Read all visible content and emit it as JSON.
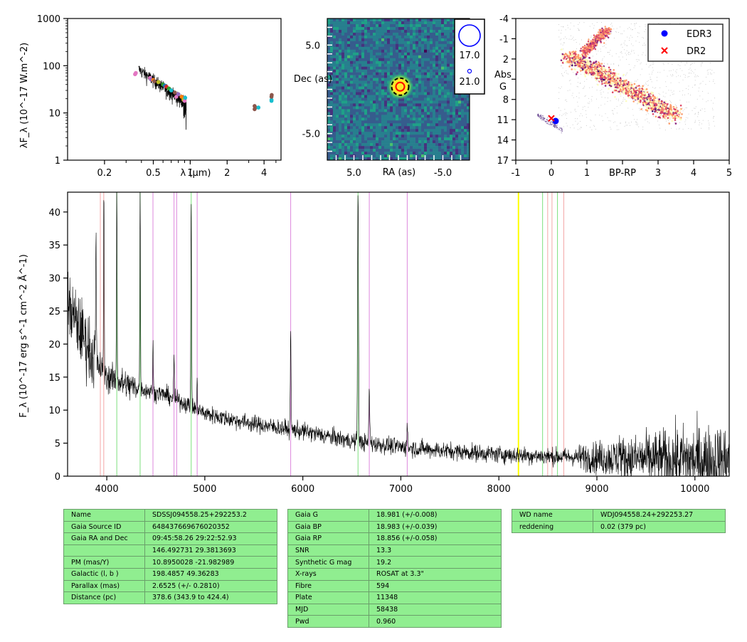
{
  "chart_data": [
    {
      "type": "scatter",
      "name": "sed",
      "xlabel": "λ (μm)",
      "ylabel": "λF_λ (10^-17 W.m^-2)",
      "xscale": "log",
      "yscale": "log",
      "xlim": [
        0.1,
        5.5
      ],
      "ylim": [
        1,
        1000
      ],
      "xticks": [
        "0.2",
        "0.5",
        "1",
        "2",
        "4"
      ],
      "yticks": [
        "1",
        "10",
        "100",
        "1000"
      ],
      "points": [
        {
          "x": 0.355,
          "y": 66,
          "color": "#e377c2"
        },
        {
          "x": 0.36,
          "y": 70,
          "color": "#e377c2"
        },
        {
          "x": 0.47,
          "y": 55,
          "color": "#e377c2"
        },
        {
          "x": 0.48,
          "y": 51,
          "color": "#9467bd"
        },
        {
          "x": 0.5,
          "y": 50,
          "color": "#ff7f0e"
        },
        {
          "x": 0.51,
          "y": 47,
          "color": "#8c564b"
        },
        {
          "x": 0.55,
          "y": 45,
          "color": "#bcbd22"
        },
        {
          "x": 0.6,
          "y": 40,
          "color": "#2ca02c"
        },
        {
          "x": 0.62,
          "y": 38,
          "color": "#1f77b4"
        },
        {
          "x": 0.64,
          "y": 36,
          "color": "#d62728"
        },
        {
          "x": 0.67,
          "y": 33,
          "color": "#2ca02c"
        },
        {
          "x": 0.7,
          "y": 30,
          "color": "#17becf"
        },
        {
          "x": 0.75,
          "y": 27,
          "color": "#8c564b"
        },
        {
          "x": 0.77,
          "y": 22,
          "color": "#e377c2"
        },
        {
          "x": 0.8,
          "y": 25,
          "color": "#9467bd"
        },
        {
          "x": 0.85,
          "y": 22,
          "color": "#ff7f0e"
        },
        {
          "x": 0.88,
          "y": 19,
          "color": "#bcbd22"
        },
        {
          "x": 0.9,
          "y": 18,
          "color": "#e377c2"
        },
        {
          "x": 0.91,
          "y": 21,
          "color": "#17becf"
        },
        {
          "x": 3.35,
          "y": 14,
          "color": "#8c564b"
        },
        {
          "x": 3.35,
          "y": 12,
          "color": "#8c564b"
        },
        {
          "x": 3.4,
          "y": 13,
          "color": "#8c564b"
        },
        {
          "x": 3.6,
          "y": 13,
          "color": "#17becf"
        },
        {
          "x": 4.6,
          "y": 18,
          "color": "#17becf"
        },
        {
          "x": 4.6,
          "y": 19,
          "color": "#17becf"
        },
        {
          "x": 4.6,
          "y": 22,
          "color": "#8c564b"
        },
        {
          "x": 4.62,
          "y": 24,
          "color": "#8c564b"
        }
      ]
    },
    {
      "type": "heatmap",
      "name": "image",
      "xlabel": "RA (as)",
      "ylabel": "Dec (as)",
      "xticks": [
        "5.0",
        "-5.0"
      ],
      "yticks": [
        "5.0",
        "-5.0"
      ],
      "xlim": [
        8,
        -8
      ],
      "ylim": [
        -8,
        8
      ],
      "colormap": "viridis",
      "source": {
        "ra": -0.2,
        "dec": 0.3
      },
      "legend": [
        {
          "label": "17.0",
          "marker": "large-circle"
        },
        {
          "label": "21.0",
          "marker": "small-circle"
        }
      ]
    },
    {
      "type": "scatter",
      "name": "hr",
      "xlabel": "BP-RP",
      "ylabel": "Abs G",
      "xlim": [
        -1,
        5
      ],
      "ylim": [
        17,
        -4
      ],
      "xticks": [
        "-1",
        "0",
        "1",
        "3",
        "4",
        "5"
      ],
      "xlabel_at_tick": "2",
      "yticks": [
        "-4",
        "-1",
        "2",
        "5",
        "8",
        "11",
        "14",
        "17"
      ],
      "ylabel_at_tick": "5",
      "series": [
        {
          "name": "EDR3",
          "marker": "circle",
          "color": "#0000ff",
          "points": [
            {
              "x": 0.12,
              "y": 11.2
            }
          ]
        },
        {
          "name": "DR2",
          "marker": "x",
          "color": "#ff0000",
          "points": [
            {
              "x": 0.0,
              "y": 10.8
            }
          ]
        }
      ],
      "legend_position": "top-right"
    },
    {
      "type": "line",
      "name": "spectrum",
      "xlabel": "",
      "ylabel": "F_λ (10^-17 erg s^-1 cm^-2 Å^-1)",
      "xlim": [
        3600,
        10350
      ],
      "ylim": [
        0,
        43
      ],
      "xticks": [
        4000,
        5000,
        6000,
        7000,
        8000,
        9000,
        10000
      ],
      "yticks": [
        0,
        5,
        10,
        15,
        20,
        25,
        30,
        35,
        40
      ],
      "continuum": [
        [
          3600,
          26
        ],
        [
          3700,
          23
        ],
        [
          3800,
          20
        ],
        [
          3900,
          17
        ],
        [
          4000,
          15
        ],
        [
          4200,
          13.8
        ],
        [
          4400,
          13
        ],
        [
          4600,
          12.3
        ],
        [
          4800,
          11
        ],
        [
          5000,
          9.5
        ],
        [
          5200,
          8.8
        ],
        [
          5500,
          7.9
        ],
        [
          6000,
          6.8
        ],
        [
          6500,
          5.3
        ],
        [
          7000,
          4.4
        ],
        [
          7500,
          3.8
        ],
        [
          8000,
          3.3
        ],
        [
          8500,
          3
        ],
        [
          9000,
          2.8
        ],
        [
          9500,
          2.6
        ],
        [
          10000,
          2.5
        ],
        [
          10350,
          2.5
        ]
      ],
      "emission_lines": [
        {
          "x": 3889,
          "peak": 35
        },
        {
          "x": 3970,
          "peak": 43
        },
        {
          "x": 4102,
          "peak": 43
        },
        {
          "x": 4340,
          "peak": 43
        },
        {
          "x": 4471,
          "peak": 20
        },
        {
          "x": 4686,
          "peak": 18
        },
        {
          "x": 4861,
          "peak": 43
        },
        {
          "x": 4922,
          "peak": 14
        },
        {
          "x": 5876,
          "peak": 23
        },
        {
          "x": 6563,
          "peak": 43
        },
        {
          "x": 6678,
          "peak": 13
        },
        {
          "x": 7065,
          "peak": 7.5
        },
        {
          "x": 9230,
          "peak": 5
        }
      ],
      "vlines": [
        {
          "x": 3934,
          "color": "#f4a6a6"
        },
        {
          "x": 3969,
          "color": "#f4a6a6"
        },
        {
          "x": 4102,
          "color": "#7ee07e"
        },
        {
          "x": 4340,
          "color": "#7ee07e"
        },
        {
          "x": 4471,
          "color": "#dd88dd"
        },
        {
          "x": 4686,
          "color": "#dd88dd"
        },
        {
          "x": 4713,
          "color": "#dd88dd"
        },
        {
          "x": 4861,
          "color": "#7ee07e"
        },
        {
          "x": 4922,
          "color": "#dd88dd"
        },
        {
          "x": 5876,
          "color": "#dd88dd"
        },
        {
          "x": 6563,
          "color": "#7ee07e"
        },
        {
          "x": 6678,
          "color": "#dd88dd"
        },
        {
          "x": 7065,
          "color": "#dd88dd"
        },
        {
          "x": 8200,
          "color": "#ffff00"
        },
        {
          "x": 8446,
          "color": "#7ee07e"
        },
        {
          "x": 8498,
          "color": "#f4a6a6"
        },
        {
          "x": 8542,
          "color": "#f4a6a6"
        },
        {
          "x": 8598,
          "color": "#7ee07e"
        },
        {
          "x": 8662,
          "color": "#f4a6a6"
        }
      ]
    }
  ],
  "tables": {
    "left": [
      {
        "k": "Name",
        "v": "SDSSJ094558.25+292253.2"
      },
      {
        "k": "Gaia Source ID",
        "v": "648437669676020352"
      },
      {
        "k": "Gaia RA and Dec",
        "v": "09:45:58.26    29:22:52.93"
      },
      {
        "k": "",
        "v": "146.492731    29.3813693"
      },
      {
        "k": "PM (mas/Y)",
        "v": "10.8950028    -21.982989"
      },
      {
        "k": "Galactic (l, b )",
        "v": "198.4857    49.36283"
      },
      {
        "k": "Parallax (mas)",
        "v": "2.6525 (+/- 0.2810)"
      },
      {
        "k": "Distance (pc)",
        "v": "378.6 (343.9 to 424.4)"
      }
    ],
    "middle": [
      {
        "k": "Gaia G",
        "v": "18.981 (+/-0.008)"
      },
      {
        "k": "Gaia BP",
        "v": "18.983 (+/-0.039)"
      },
      {
        "k": "Gaia RP",
        "v": "18.856 (+/-0.058)"
      },
      {
        "k": "SNR",
        "v": "13.3"
      },
      {
        "k": "Synthetic G mag",
        "v": "19.2"
      },
      {
        "k": "X-rays",
        "v": "ROSAT at 3.3\""
      },
      {
        "k": "Fibre",
        "v": "594"
      },
      {
        "k": "Plate",
        "v": "11348"
      },
      {
        "k": "MJD",
        "v": "58438"
      },
      {
        "k": "Pwd",
        "v": "0.960"
      }
    ],
    "right": [
      {
        "k": "WD name",
        "v": "WDJ094558.24+292253.27"
      },
      {
        "k": "reddening",
        "v": "0.02 (379 pc)"
      }
    ]
  }
}
